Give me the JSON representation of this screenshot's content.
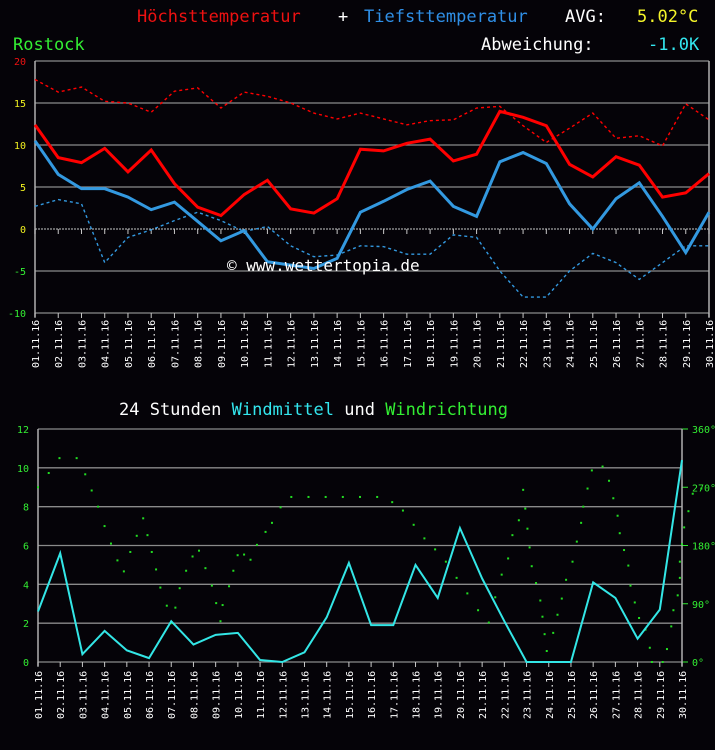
{
  "header": {
    "title_high": "Höchsttemperatur",
    "title_plus": "+",
    "title_low": "Tiefsttemperatur",
    "avg_label": "AVG:",
    "avg_value": "5.02°C",
    "location": "Rostock",
    "deviation_label": "Abweichung:",
    "deviation_value": "-1.0K"
  },
  "colors": {
    "high": "#ff0000",
    "low": "#3399e0",
    "avg": "#ffff33",
    "location": "#33ff33",
    "deviation": "#33ffff",
    "wind": "#33e6e6",
    "direction": "#22dd22",
    "grid": "#9a9a9a"
  },
  "watermark": "© www.wettertopia.de",
  "wind_title": {
    "prefix": "24 Stunden",
    "wind": "Windmittel",
    "und": "und",
    "direction": "Windrichtung"
  },
  "chart_data": [
    {
      "type": "line",
      "title": "Höchsttemperatur + Tiefsttemperatur",
      "xlabel": "",
      "ylabel": "°C",
      "ylim": [
        -10,
        20
      ],
      "yticks": [
        20,
        15,
        10,
        5,
        0,
        -5,
        -10
      ],
      "grid": true,
      "categories": [
        "01.11.16",
        "02.11.16",
        "03.11.16",
        "04.11.16",
        "05.11.16",
        "06.11.16",
        "07.11.16",
        "08.11.16",
        "09.11.16",
        "10.11.16",
        "11.11.16",
        "12.11.16",
        "13.11.16",
        "14.11.16",
        "15.11.16",
        "16.11.16",
        "17.11.16",
        "18.11.16",
        "19.11.16",
        "20.11.16",
        "21.11.16",
        "22.11.16",
        "23.11.16",
        "24.11.16",
        "25.11.16",
        "26.11.16",
        "27.11.16",
        "28.11.16",
        "29.11.16",
        "30.11.16"
      ],
      "series": [
        {
          "name": "Höchsttemperatur",
          "style": "solid",
          "color": "#ff0000",
          "values": [
            12.4,
            8.5,
            7.9,
            9.6,
            6.8,
            9.4,
            5.4,
            2.6,
            1.6,
            4.1,
            5.8,
            2.4,
            1.9,
            3.6,
            9.5,
            9.3,
            10.2,
            10.7,
            8.1,
            8.9,
            14.0,
            13.3,
            12.3,
            7.7,
            6.2,
            8.6,
            7.6,
            3.8,
            4.3,
            6.6
          ]
        },
        {
          "name": "Tiefsttemperatur",
          "style": "solid",
          "color": "#3399e0",
          "values": [
            10.5,
            6.5,
            4.8,
            4.8,
            3.8,
            2.3,
            3.2,
            0.9,
            -1.4,
            -0.2,
            -3.9,
            -4.3,
            -4.7,
            -3.5,
            2.0,
            3.3,
            4.7,
            5.7,
            2.7,
            1.5,
            8.0,
            9.1,
            7.8,
            3.0,
            0.0,
            3.6,
            5.5,
            1.5,
            -2.8,
            2.0
          ]
        },
        {
          "name": "Höchsttemperatur (Mittel)",
          "style": "dashed",
          "color": "#ff0000",
          "values": [
            17.8,
            16.3,
            16.9,
            15.2,
            15.0,
            13.9,
            16.4,
            16.8,
            14.4,
            16.3,
            15.8,
            15.0,
            13.8,
            13.1,
            13.8,
            13.1,
            12.4,
            12.9,
            13.0,
            14.4,
            14.6,
            12.3,
            10.3,
            12.0,
            13.8,
            10.8,
            11.1,
            9.9,
            14.9,
            13.0
          ]
        },
        {
          "name": "Tiefsttemperatur (Mittel)",
          "style": "dashed",
          "color": "#3399e0",
          "values": [
            2.7,
            3.5,
            3.0,
            -4.0,
            -1.0,
            -0.1,
            1.0,
            2.0,
            1.0,
            -0.3,
            0.3,
            -2.0,
            -3.3,
            -3.1,
            -2.0,
            -2.1,
            -3.0,
            -3.0,
            -0.7,
            -1.0,
            -5.0,
            -8.1,
            -8.1,
            -5.0,
            -2.9,
            -4.0,
            -6.0,
            -4.0,
            -2.0,
            -2.0
          ]
        }
      ]
    },
    {
      "type": "line",
      "title": "24 Stunden Windmittel und Windrichtung",
      "xlabel": "",
      "ylabel": "Windmittel",
      "ylim": [
        0,
        12
      ],
      "yticks": [
        12,
        10,
        8,
        6,
        4,
        2,
        0
      ],
      "y2label": "Windrichtung",
      "y2lim": [
        0,
        360
      ],
      "y2ticks": [
        "360°",
        "270°",
        "180°",
        "90°",
        "0°"
      ],
      "grid": true,
      "categories": [
        "01.11.16",
        "02.11.16",
        "03.11.16",
        "04.11.16",
        "05.11.16",
        "06.11.16",
        "07.11.16",
        "08.11.16",
        "09.11.16",
        "10.11.16",
        "11.11.16",
        "12.11.16",
        "13.11.16",
        "14.11.16",
        "15.11.16",
        "16.11.16",
        "17.11.16",
        "18.11.16",
        "19.11.16",
        "20.11.16",
        "21.11.16",
        "22.11.16",
        "23.11.16",
        "24.11.16",
        "25.11.16",
        "26.11.16",
        "27.11.16",
        "28.11.16",
        "29.11.16",
        "30.11.16"
      ],
      "series": [
        {
          "name": "Windmittel",
          "style": "line",
          "color": "#33e6e6",
          "values": [
            2.6,
            5.6,
            0.4,
            1.6,
            0.6,
            0.2,
            2.1,
            0.9,
            1.4,
            1.5,
            0.1,
            0.0,
            0.5,
            2.3,
            5.1,
            1.9,
            1.9,
            5.0,
            3.3,
            6.9,
            4.3,
            2.1,
            0.0,
            0.0,
            0.0,
            4.1,
            3.3,
            1.2,
            2.7,
            10.4
          ]
        },
        {
          "name": "Windrichtung",
          "style": "dots",
          "color": "#22dd22",
          "points": [
            [
              0.0,
              270
            ],
            [
              0.5,
              292
            ],
            [
              1.0,
              315
            ],
            [
              1.8,
              315
            ],
            [
              2.2,
              290
            ],
            [
              2.5,
              265
            ],
            [
              2.8,
              240
            ],
            [
              3.1,
              210
            ],
            [
              3.4,
              183
            ],
            [
              3.7,
              157
            ],
            [
              4.0,
              140
            ],
            [
              4.3,
              170
            ],
            [
              4.6,
              195
            ],
            [
              4.9,
              222
            ],
            [
              5.1,
              196
            ],
            [
              5.3,
              170
            ],
            [
              5.5,
              143
            ],
            [
              5.7,
              115
            ],
            [
              6.0,
              87
            ],
            [
              6.2,
              60
            ],
            [
              6.4,
              84
            ],
            [
              6.6,
              114
            ],
            [
              6.9,
              141
            ],
            [
              7.2,
              163
            ],
            [
              7.5,
              172
            ],
            [
              7.8,
              145
            ],
            [
              8.1,
              118
            ],
            [
              8.3,
              91
            ],
            [
              8.5,
              63
            ],
            [
              8.6,
              88
            ],
            [
              8.9,
              117
            ],
            [
              9.1,
              141
            ],
            [
              9.3,
              165
            ],
            [
              9.6,
              166
            ],
            [
              9.9,
              158
            ],
            [
              10.2,
              181
            ],
            [
              10.6,
              201
            ],
            [
              10.9,
              215
            ],
            [
              11.3,
              239
            ],
            [
              11.8,
              255
            ],
            [
              12.6,
              255
            ],
            [
              13.4,
              255
            ],
            [
              14.2,
              255
            ],
            [
              15.0,
              255
            ],
            [
              15.8,
              255
            ],
            [
              16.5,
              247
            ],
            [
              17.0,
              234
            ],
            [
              17.5,
              212
            ],
            [
              18.0,
              191
            ],
            [
              18.5,
              174
            ],
            [
              19.0,
              155
            ],
            [
              19.5,
              130
            ],
            [
              20.0,
              106
            ],
            [
              20.5,
              80
            ],
            [
              21.0,
              61
            ],
            [
              21.3,
              100
            ],
            [
              21.6,
              135
            ],
            [
              21.9,
              160
            ],
            [
              22.1,
              196
            ],
            [
              22.4,
              219
            ],
            [
              22.6,
              266
            ],
            [
              22.7,
              237
            ],
            [
              22.8,
              206
            ],
            [
              22.9,
              177
            ],
            [
              23.0,
              148
            ],
            [
              23.2,
              122
            ],
            [
              23.4,
              95
            ],
            [
              23.5,
              70
            ],
            [
              23.6,
              43
            ],
            [
              23.7,
              17
            ],
            [
              24.0,
              45
            ],
            [
              24.2,
              73
            ],
            [
              24.4,
              98
            ],
            [
              24.6,
              127
            ],
            [
              24.9,
              155
            ],
            [
              25.1,
              186
            ],
            [
              25.3,
              215
            ],
            [
              25.4,
              240
            ],
            [
              25.6,
              268
            ],
            [
              25.8,
              296
            ],
            [
              26.3,
              302
            ],
            [
              26.6,
              280
            ],
            [
              26.8,
              253
            ],
            [
              27.0,
              226
            ],
            [
              27.1,
              199
            ],
            [
              27.3,
              173
            ],
            [
              27.5,
              149
            ],
            [
              27.6,
              118
            ],
            [
              27.8,
              92
            ],
            [
              28.0,
              68
            ],
            [
              28.3,
              50
            ],
            [
              28.5,
              22
            ],
            [
              28.6,
              0
            ],
            [
              29.1,
              0
            ],
            [
              29.3,
              20
            ],
            [
              29.5,
              55
            ],
            [
              29.6,
              80
            ],
            [
              29.8,
              103
            ],
            [
              29.9,
              130
            ],
            [
              29.9,
              155
            ],
            [
              30.0,
              182
            ],
            [
              30.1,
              208
            ],
            [
              30.3,
              233
            ],
            [
              30.5,
              260
            ],
            [
              30.9,
              268
            ]
          ]
        }
      ]
    }
  ]
}
